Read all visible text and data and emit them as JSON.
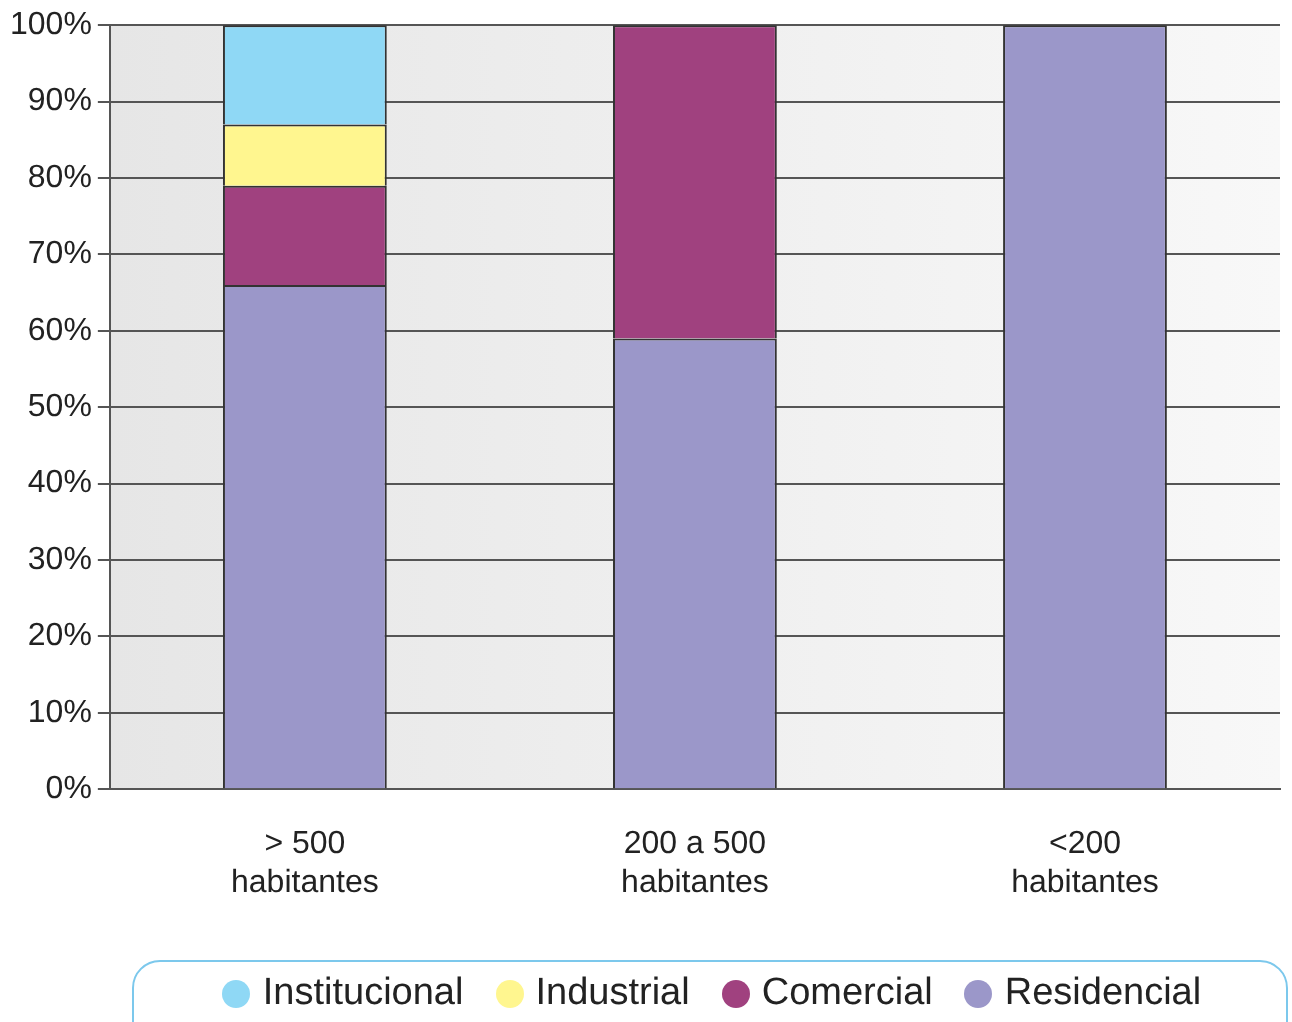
{
  "chart_data": {
    "type": "bar",
    "stacked": true,
    "categories": [
      "> 500 habitantes",
      "200 a 500 habitantes",
      "<200 habitantes"
    ],
    "series": [
      {
        "name": "Residencial",
        "color": "#9b97c9",
        "values": [
          66,
          59,
          100
        ]
      },
      {
        "name": "Comercial",
        "color": "#a0417f",
        "values": [
          13,
          41,
          0
        ]
      },
      {
        "name": "Industrial",
        "color": "#fff68f",
        "values": [
          8,
          0,
          0
        ]
      },
      {
        "name": "Institucional",
        "color": "#8fd8f5",
        "values": [
          13,
          0,
          0
        ]
      }
    ],
    "ylim": [
      0,
      100
    ],
    "yticks": [
      {
        "value": 0,
        "label": "0%"
      },
      {
        "value": 10,
        "label": "10%"
      },
      {
        "value": 20,
        "label": "20%"
      },
      {
        "value": 30,
        "label": "30%"
      },
      {
        "value": 40,
        "label": "40%"
      },
      {
        "value": 50,
        "label": "50%"
      },
      {
        "value": 60,
        "label": "60%"
      },
      {
        "value": 70,
        "label": "70%"
      },
      {
        "value": 80,
        "label": "80%"
      },
      {
        "value": 90,
        "label": "90%"
      },
      {
        "value": 100,
        "label": "100%"
      }
    ],
    "grid": "y",
    "legend": "bottom"
  }
}
